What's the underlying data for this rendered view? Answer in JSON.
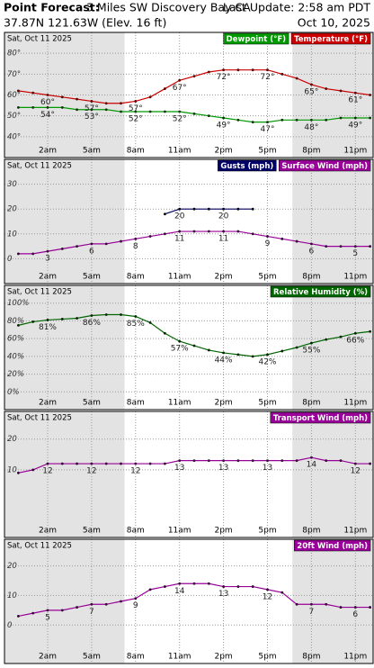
{
  "header": {
    "title": "Point Forecast:",
    "location": "3 Miles SW Discovery Bay CA",
    "update": "Last Update: 2:58 am PDT",
    "coords": "37.87N 121.63W (Elev. 16 ft)",
    "date": "Oct 10, 2025"
  },
  "chart_data": [
    {
      "type": "line",
      "subtitle": "Sat, Oct 11 2025",
      "categories": [
        null,
        null,
        "2am",
        null,
        null,
        "5am",
        null,
        null,
        "8am",
        null,
        null,
        "11am",
        null,
        null,
        "2pm",
        null,
        null,
        "5pm",
        null,
        null,
        "8pm",
        null,
        null,
        "11pm",
        null
      ],
      "ylim": [
        30,
        90
      ],
      "yticks": [
        {
          "value": 40,
          "label": "40°"
        },
        {
          "value": 50,
          "label": "50°"
        },
        {
          "value": 60,
          "label": "60°"
        },
        {
          "value": 70,
          "label": "70°"
        },
        {
          "value": 80,
          "label": "80°"
        }
      ],
      "grid": true,
      "series": [
        {
          "name": "Dewpoint (°F)",
          "color": "#009900",
          "marker_color": "#003300",
          "values": [
            54,
            54,
            54,
            54,
            53,
            53,
            53,
            52,
            52,
            52,
            52,
            52,
            51,
            50,
            49,
            48,
            47,
            47,
            48,
            48,
            48,
            48,
            49,
            49,
            49
          ],
          "value_labels": [
            null,
            null,
            "54°",
            null,
            null,
            "53°",
            null,
            null,
            "52°",
            null,
            null,
            "52°",
            null,
            null,
            "49°",
            null,
            null,
            "47°",
            null,
            null,
            "48°",
            null,
            null,
            "49°",
            null
          ]
        },
        {
          "name": "Temperature (°F)",
          "color": "#cc0000",
          "marker_color": "#550000",
          "values": [
            62,
            61,
            60,
            59,
            58,
            57,
            56,
            56,
            57,
            59,
            63,
            67,
            69,
            71,
            72,
            72,
            72,
            72,
            70,
            68,
            65,
            63,
            62,
            61,
            60
          ],
          "value_labels": [
            null,
            null,
            "60°",
            null,
            null,
            "57°",
            null,
            null,
            "57°",
            null,
            null,
            "67°",
            null,
            null,
            "72°",
            null,
            null,
            "72°",
            null,
            null,
            "65°",
            null,
            null,
            "61°",
            null
          ]
        }
      ]
    },
    {
      "type": "line",
      "subtitle": "Sat, Oct 11 2025",
      "categories": [
        null,
        null,
        "2am",
        null,
        null,
        "5am",
        null,
        null,
        "8am",
        null,
        null,
        "11am",
        null,
        null,
        "2pm",
        null,
        null,
        "5pm",
        null,
        null,
        "8pm",
        null,
        null,
        "11pm",
        null
      ],
      "ylim": [
        -10,
        40
      ],
      "yticks": [
        0,
        10,
        20,
        30
      ],
      "grid": true,
      "series": [
        {
          "name": "Gusts (mph)",
          "color": "#000066",
          "marker_color": "#000000",
          "values": [
            null,
            null,
            null,
            null,
            null,
            null,
            null,
            null,
            null,
            null,
            18,
            20,
            20,
            20,
            20,
            20,
            20,
            null,
            null,
            null,
            null,
            null,
            null,
            null,
            null
          ],
          "value_labels": [
            null,
            null,
            null,
            null,
            null,
            null,
            null,
            null,
            null,
            null,
            null,
            "20",
            null,
            null,
            "20",
            null,
            null,
            null,
            null,
            null,
            null,
            null,
            null,
            null,
            null
          ]
        },
        {
          "name": "Surface Wind (mph)",
          "color": "#990099",
          "marker_color": "#330033",
          "values": [
            2,
            2,
            3,
            4,
            5,
            6,
            6,
            7,
            8,
            9,
            10,
            11,
            11,
            11,
            11,
            11,
            10,
            9,
            8,
            7,
            6,
            5,
            5,
            5,
            5
          ],
          "value_labels": [
            null,
            null,
            "3",
            null,
            null,
            "6",
            null,
            null,
            "8",
            null,
            null,
            "11",
            null,
            null,
            "11",
            null,
            null,
            "9",
            null,
            null,
            "6",
            null,
            null,
            "5",
            null
          ]
        }
      ]
    },
    {
      "type": "line",
      "subtitle": "Sat, Oct 11 2025",
      "categories": [
        null,
        null,
        "2am",
        null,
        null,
        "5am",
        null,
        null,
        "8am",
        null,
        null,
        "11am",
        null,
        null,
        "2pm",
        null,
        null,
        "5pm",
        null,
        null,
        "8pm",
        null,
        null,
        "11pm",
        null
      ],
      "ylim": [
        -20,
        120
      ],
      "yticks": [
        {
          "value": 0,
          "label": "0%"
        },
        {
          "value": 20,
          "label": "20%"
        },
        {
          "value": 40,
          "label": "40%"
        },
        {
          "value": 60,
          "label": "60%"
        },
        {
          "value": 80,
          "label": "80%"
        },
        {
          "value": 100,
          "label": "100%"
        }
      ],
      "grid": true,
      "series": [
        {
          "name": "Relative Humidity (%)",
          "color": "#006600",
          "marker_color": "#002200",
          "values": [
            75,
            79,
            81,
            82,
            83,
            86,
            87,
            87,
            85,
            78,
            66,
            57,
            52,
            47,
            44,
            42,
            40,
            42,
            46,
            50,
            55,
            59,
            62,
            66,
            68
          ],
          "value_labels": [
            null,
            null,
            "81%",
            null,
            null,
            "86%",
            null,
            null,
            "85%",
            null,
            null,
            "57%",
            null,
            null,
            "44%",
            null,
            null,
            "42%",
            null,
            null,
            "55%",
            null,
            null,
            "66%",
            null
          ]
        }
      ]
    },
    {
      "type": "line",
      "subtitle": "Sat, Oct 11 2025",
      "categories": [
        null,
        null,
        "2am",
        null,
        null,
        "5am",
        null,
        null,
        "8am",
        null,
        null,
        "11am",
        null,
        null,
        "2pm",
        null,
        null,
        "5pm",
        null,
        null,
        "8pm",
        null,
        null,
        "11pm",
        null
      ],
      "ylim": [
        -12,
        29
      ],
      "yticks": [
        10,
        20
      ],
      "grid": true,
      "series": [
        {
          "name": "Transport Wind (mph)",
          "color": "#990099",
          "marker_color": "#330033",
          "values": [
            9,
            10,
            12,
            12,
            12,
            12,
            12,
            12,
            12,
            12,
            12,
            13,
            13,
            13,
            13,
            13,
            13,
            13,
            13,
            13,
            14,
            13,
            13,
            12,
            12
          ],
          "value_labels": [
            null,
            null,
            "12",
            null,
            null,
            "12",
            null,
            null,
            "12",
            null,
            null,
            "13",
            null,
            null,
            "13",
            null,
            null,
            "13",
            null,
            null,
            "14",
            null,
            null,
            "12",
            null
          ]
        }
      ]
    },
    {
      "type": "line",
      "subtitle": "Sat, Oct 11 2025",
      "categories": [
        null,
        null,
        "2am",
        null,
        null,
        "5am",
        null,
        null,
        "8am",
        null,
        null,
        "11am",
        null,
        null,
        "2pm",
        null,
        null,
        "5pm",
        null,
        null,
        "8pm",
        null,
        null,
        "11pm",
        null
      ],
      "ylim": [
        -13,
        29
      ],
      "yticks": [
        0,
        10,
        20
      ],
      "grid": true,
      "series": [
        {
          "name": "20ft Wind (mph)",
          "color": "#990099",
          "marker_color": "#330033",
          "values": [
            3,
            4,
            5,
            5,
            6,
            7,
            7,
            8,
            9,
            12,
            13,
            14,
            14,
            14,
            13,
            13,
            13,
            12,
            11,
            7,
            7,
            7,
            6,
            6,
            6
          ],
          "value_labels": [
            null,
            null,
            "5",
            null,
            null,
            "7",
            null,
            null,
            "9",
            null,
            null,
            "14",
            null,
            null,
            "13",
            null,
            null,
            "12",
            null,
            null,
            "7",
            null,
            null,
            "6",
            null
          ]
        }
      ]
    }
  ]
}
